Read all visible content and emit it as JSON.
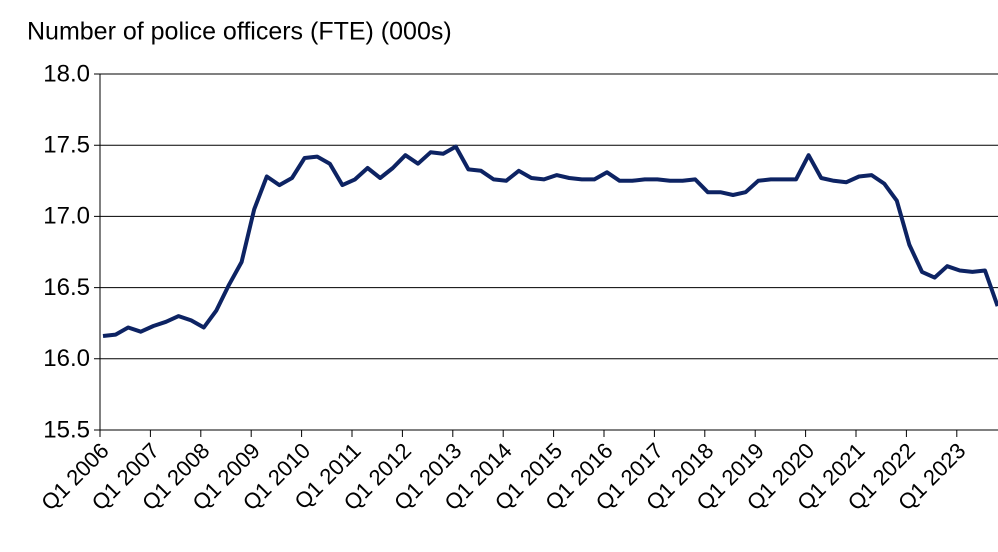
{
  "chart_data": {
    "type": "line",
    "title": "Number of police officers (FTE) (000s)",
    "categories": [
      "Q1 2006",
      null,
      null,
      null,
      "Q1 2007",
      null,
      null,
      null,
      "Q1 2008",
      null,
      null,
      null,
      "Q1 2009",
      null,
      null,
      null,
      "Q1 2010",
      null,
      null,
      null,
      "Q1 2011",
      null,
      null,
      null,
      "Q1 2012",
      null,
      null,
      null,
      "Q1 2013",
      null,
      null,
      null,
      "Q1 2014",
      null,
      null,
      null,
      "Q1 2015",
      null,
      null,
      null,
      "Q1 2016",
      null,
      null,
      null,
      "Q1 2017",
      null,
      null,
      null,
      "Q1 2018",
      null,
      null,
      null,
      "Q1 2019",
      null,
      null,
      null,
      "Q1 2020",
      null,
      null,
      null,
      "Q1 2021",
      null,
      null,
      null,
      "Q1 2022",
      null,
      null,
      null,
      "Q1 2023",
      null,
      null,
      null
    ],
    "series": [
      {
        "name": "Number of police officers (FTE)",
        "color": "#0d2363",
        "values": [
          16.16,
          16.17,
          16.22,
          16.19,
          16.23,
          16.26,
          16.3,
          16.27,
          16.22,
          16.34,
          16.52,
          16.68,
          17.05,
          17.28,
          17.22,
          17.27,
          17.41,
          17.42,
          17.37,
          17.22,
          17.26,
          17.34,
          17.27,
          17.34,
          17.43,
          17.37,
          17.45,
          17.44,
          17.49,
          17.33,
          17.32,
          17.26,
          17.25,
          17.32,
          17.27,
          17.26,
          17.29,
          17.27,
          17.26,
          17.26,
          17.31,
          17.25,
          17.25,
          17.26,
          17.26,
          17.25,
          17.25,
          17.26,
          17.17,
          17.17,
          17.15,
          17.17,
          17.25,
          17.26,
          17.26,
          17.26,
          17.43,
          17.27,
          17.25,
          17.24,
          17.28,
          17.29,
          17.23,
          17.11,
          16.8,
          16.61,
          16.57,
          16.65,
          16.62,
          16.61,
          16.62,
          16.37
        ]
      }
    ],
    "ylim": [
      15.5,
      18.0
    ],
    "yticks": [
      {
        "value": 15.5,
        "label": "15.5"
      },
      {
        "value": 16.0,
        "label": "16.0"
      },
      {
        "value": 16.5,
        "label": "16.5"
      },
      {
        "value": 17.0,
        "label": "17.0"
      },
      {
        "value": 17.5,
        "label": "17.5"
      },
      {
        "value": 18.0,
        "label": "18.0"
      }
    ],
    "grid": true
  }
}
